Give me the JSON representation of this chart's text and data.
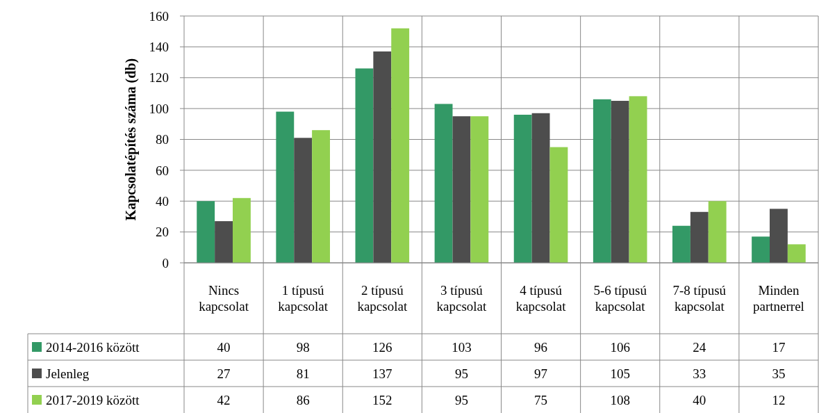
{
  "chart_data": {
    "type": "bar",
    "ylabel": "Kapcsolatépítés száma (db)",
    "categories": [
      "Nincs kapcsolat",
      "1 típusú kapcsolat",
      "2 típusú kapcsolat",
      "3 típusú kapcsolat",
      "4 típusú kapcsolat",
      "5-6 típusú kapcsolat",
      "7-8 típusú kapcsolat",
      "Minden partnerrel"
    ],
    "series": [
      {
        "name": "2014-2016 között",
        "color": "#339966",
        "values": [
          40,
          98,
          126,
          103,
          96,
          106,
          24,
          17
        ]
      },
      {
        "name": "Jelenleg",
        "color": "#4d4d4d",
        "values": [
          27,
          81,
          137,
          95,
          97,
          105,
          33,
          35
        ]
      },
      {
        "name": "2017-2019 között",
        "color": "#92d050",
        "values": [
          42,
          86,
          152,
          95,
          75,
          108,
          40,
          12
        ]
      }
    ],
    "ylim": [
      0,
      160
    ],
    "yticks": [
      0,
      20,
      40,
      60,
      80,
      100,
      120,
      140,
      160
    ],
    "grid": "y",
    "legend": "bottom",
    "data_labels": true
  }
}
